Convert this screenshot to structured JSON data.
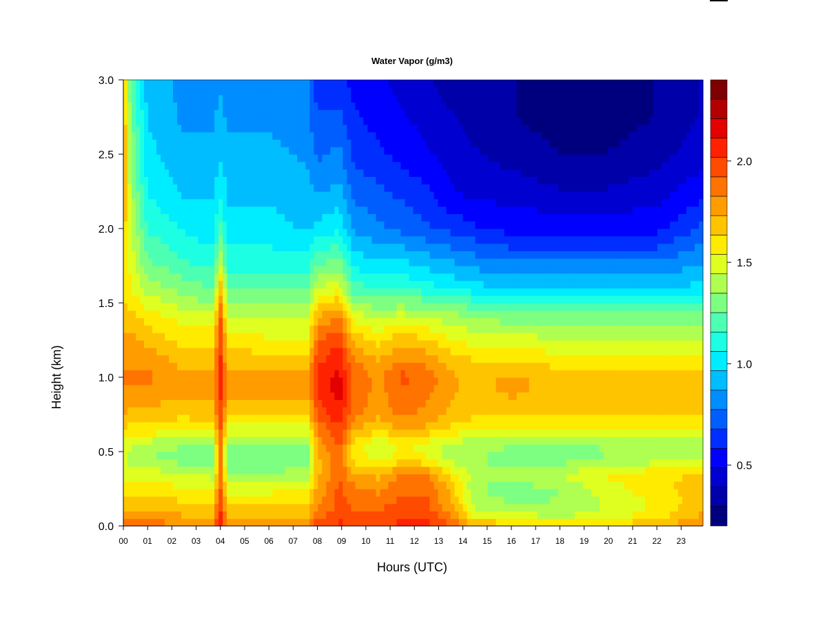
{
  "chart_data": {
    "type": "heatmap",
    "title": "Water Vapor (g/m3)",
    "xlabel": "Hours (UTC)",
    "ylabel": "Height (km)",
    "x_ticks": [
      "00",
      "01",
      "02",
      "03",
      "04",
      "05",
      "06",
      "07",
      "08",
      "09",
      "10",
      "11",
      "12",
      "13",
      "14",
      "15",
      "16",
      "17",
      "18",
      "19",
      "20",
      "21",
      "22",
      "23"
    ],
    "xlim": [
      0,
      23.9
    ],
    "y_ticks": [
      "0.0",
      "0.5",
      "1.0",
      "1.5",
      "2.0",
      "2.5",
      "3.0"
    ],
    "ylim": [
      0,
      3.0
    ],
    "colorbar": {
      "range": [
        0.2,
        2.4
      ],
      "ticks": [
        0.5,
        1.0,
        1.5,
        2.0
      ],
      "tick_labels": [
        "0.5",
        "1.0",
        "1.5",
        "2.0"
      ],
      "colors": [
        "#00007f",
        "#0000a8",
        "#0000d1",
        "#0000ff",
        "#002eff",
        "#005eff",
        "#008dff",
        "#00bdff",
        "#00ecff",
        "#1cffe2",
        "#4dffb2",
        "#7dff82",
        "#aeff51",
        "#dfff20",
        "#ffeb00",
        "#ffc400",
        "#ff9c00",
        "#ff7300",
        "#ff4b00",
        "#ff2200",
        "#e30000",
        "#b20000",
        "#7f0000"
      ]
    },
    "profile_heights_km": [
      0.0,
      0.05,
      0.15,
      0.25,
      0.35,
      0.45,
      0.55,
      0.65,
      0.75,
      0.9,
      1.0,
      1.1,
      1.25,
      1.4,
      1.5,
      1.6,
      1.8,
      2.0,
      2.25,
      2.5,
      2.75,
      3.0
    ],
    "profiles": [
      {
        "hour": 0.0,
        "values": [
          1.9,
          1.8,
          1.7,
          1.6,
          1.5,
          1.45,
          1.5,
          1.65,
          1.75,
          1.8,
          1.85,
          1.8,
          1.75,
          1.7,
          1.65,
          1.65,
          1.65,
          1.7,
          1.75,
          1.8,
          1.75,
          1.7
        ]
      },
      {
        "hour": 0.3,
        "values": [
          1.9,
          1.8,
          1.7,
          1.6,
          1.5,
          1.4,
          1.45,
          1.6,
          1.7,
          1.8,
          1.85,
          1.8,
          1.75,
          1.7,
          1.6,
          1.55,
          1.5,
          1.45,
          1.4,
          1.35,
          1.3,
          1.25
        ]
      },
      {
        "hour": 1.0,
        "values": [
          1.9,
          1.8,
          1.7,
          1.6,
          1.5,
          1.35,
          1.4,
          1.6,
          1.7,
          1.8,
          1.85,
          1.8,
          1.7,
          1.6,
          1.5,
          1.4,
          1.25,
          1.15,
          1.05,
          1.0,
          0.95,
          0.9
        ]
      },
      {
        "hour": 2.5,
        "values": [
          1.85,
          1.75,
          1.65,
          1.55,
          1.45,
          1.3,
          1.35,
          1.55,
          1.65,
          1.75,
          1.75,
          1.7,
          1.6,
          1.5,
          1.4,
          1.3,
          1.15,
          1.05,
          0.95,
          0.9,
          0.85,
          0.85
        ]
      },
      {
        "hour": 3.7,
        "values": [
          1.85,
          1.75,
          1.65,
          1.55,
          1.4,
          1.3,
          1.35,
          1.55,
          1.7,
          1.75,
          1.75,
          1.7,
          1.6,
          1.5,
          1.35,
          1.25,
          1.1,
          1.0,
          0.95,
          0.9,
          0.85,
          0.85
        ]
      },
      {
        "hour": 4.0,
        "values": [
          2.1,
          2.05,
          2.0,
          1.95,
          1.9,
          1.85,
          1.9,
          1.95,
          2.0,
          2.05,
          2.1,
          2.05,
          2.0,
          1.95,
          1.85,
          1.7,
          1.4,
          1.2,
          1.05,
          0.95,
          0.9,
          0.85
        ]
      },
      {
        "hour": 4.3,
        "values": [
          1.85,
          1.75,
          1.65,
          1.5,
          1.35,
          1.25,
          1.3,
          1.5,
          1.65,
          1.75,
          1.75,
          1.7,
          1.6,
          1.45,
          1.35,
          1.25,
          1.1,
          1.0,
          0.95,
          0.9,
          0.85,
          0.85
        ]
      },
      {
        "hour": 6.0,
        "values": [
          1.85,
          1.75,
          1.65,
          1.5,
          1.35,
          1.25,
          1.3,
          1.5,
          1.65,
          1.75,
          1.75,
          1.7,
          1.55,
          1.45,
          1.35,
          1.25,
          1.1,
          1.0,
          0.95,
          0.9,
          0.85,
          0.85
        ]
      },
      {
        "hour": 7.6,
        "values": [
          1.85,
          1.75,
          1.65,
          1.55,
          1.4,
          1.3,
          1.35,
          1.5,
          1.65,
          1.75,
          1.75,
          1.7,
          1.55,
          1.45,
          1.35,
          1.25,
          1.1,
          0.95,
          0.9,
          0.85,
          0.8,
          0.8
        ]
      },
      {
        "hour": 8.0,
        "values": [
          2.0,
          1.9,
          1.8,
          1.75,
          1.7,
          1.7,
          1.75,
          1.85,
          1.95,
          2.05,
          2.05,
          2.0,
          1.9,
          1.75,
          1.6,
          1.45,
          1.2,
          1.0,
          0.85,
          0.75,
          0.7,
          0.6
        ]
      },
      {
        "hour": 8.9,
        "values": [
          2.05,
          2.0,
          1.95,
          1.95,
          1.9,
          1.9,
          1.95,
          2.0,
          2.1,
          2.15,
          2.15,
          2.1,
          2.0,
          1.85,
          1.7,
          1.5,
          1.25,
          1.05,
          0.9,
          0.8,
          0.7,
          0.6
        ]
      },
      {
        "hour": 9.5,
        "values": [
          2.0,
          1.95,
          1.9,
          1.85,
          1.75,
          1.6,
          1.6,
          1.75,
          1.85,
          1.9,
          1.9,
          1.85,
          1.7,
          1.5,
          1.35,
          1.2,
          1.0,
          0.85,
          0.75,
          0.65,
          0.6,
          0.55
        ]
      },
      {
        "hour": 10.5,
        "values": [
          2.0,
          1.95,
          1.9,
          1.8,
          1.7,
          1.5,
          1.45,
          1.65,
          1.75,
          1.8,
          1.8,
          1.75,
          1.6,
          1.45,
          1.3,
          1.15,
          0.95,
          0.8,
          0.7,
          0.6,
          0.55,
          0.5
        ]
      },
      {
        "hour": 11.5,
        "values": [
          2.05,
          2.0,
          1.95,
          1.9,
          1.85,
          1.6,
          1.55,
          1.75,
          1.85,
          1.9,
          1.95,
          1.85,
          1.7,
          1.5,
          1.3,
          1.15,
          0.95,
          0.75,
          0.65,
          0.55,
          0.5,
          0.45
        ]
      },
      {
        "hour": 12.5,
        "values": [
          2.05,
          2.0,
          1.95,
          1.9,
          1.85,
          1.55,
          1.5,
          1.7,
          1.8,
          1.85,
          1.9,
          1.8,
          1.65,
          1.45,
          1.3,
          1.1,
          0.9,
          0.7,
          0.6,
          0.5,
          0.45,
          0.4
        ]
      },
      {
        "hour": 13.5,
        "values": [
          1.95,
          1.85,
          1.75,
          1.7,
          1.6,
          1.4,
          1.4,
          1.6,
          1.7,
          1.75,
          1.75,
          1.7,
          1.55,
          1.4,
          1.25,
          1.05,
          0.85,
          0.65,
          0.5,
          0.45,
          0.4,
          0.35
        ]
      },
      {
        "hour": 14.5,
        "values": [
          1.75,
          1.55,
          1.4,
          1.35,
          1.4,
          1.35,
          1.4,
          1.55,
          1.65,
          1.7,
          1.7,
          1.65,
          1.5,
          1.35,
          1.2,
          1.0,
          0.8,
          0.6,
          0.45,
          0.4,
          0.35,
          0.3
        ]
      },
      {
        "hour": 16.0,
        "values": [
          1.75,
          1.5,
          1.35,
          1.3,
          1.4,
          1.3,
          1.35,
          1.55,
          1.65,
          1.75,
          1.75,
          1.65,
          1.5,
          1.3,
          1.15,
          0.95,
          0.75,
          0.55,
          0.45,
          0.35,
          0.3,
          0.3
        ]
      },
      {
        "hour": 18.0,
        "values": [
          1.7,
          1.45,
          1.35,
          1.35,
          1.45,
          1.3,
          1.35,
          1.55,
          1.65,
          1.7,
          1.7,
          1.6,
          1.45,
          1.3,
          1.15,
          0.95,
          0.75,
          0.55,
          0.4,
          0.3,
          0.25,
          0.25
        ]
      },
      {
        "hour": 20.0,
        "values": [
          1.7,
          1.5,
          1.45,
          1.5,
          1.55,
          1.35,
          1.35,
          1.55,
          1.65,
          1.7,
          1.7,
          1.6,
          1.45,
          1.3,
          1.15,
          0.95,
          0.75,
          0.55,
          0.4,
          0.3,
          0.25,
          0.25
        ]
      },
      {
        "hour": 22.0,
        "values": [
          1.75,
          1.6,
          1.55,
          1.6,
          1.6,
          1.4,
          1.35,
          1.55,
          1.65,
          1.7,
          1.7,
          1.6,
          1.45,
          1.3,
          1.15,
          0.95,
          0.75,
          0.55,
          0.45,
          0.35,
          0.3,
          0.3
        ]
      },
      {
        "hour": 23.9,
        "values": [
          1.85,
          1.75,
          1.7,
          1.7,
          1.65,
          1.4,
          1.4,
          1.55,
          1.65,
          1.7,
          1.7,
          1.6,
          1.45,
          1.3,
          1.15,
          1.0,
          0.85,
          0.7,
          0.55,
          0.45,
          0.4,
          0.4
        ]
      }
    ],
    "grid": false,
    "legend": "colorbar-right"
  }
}
